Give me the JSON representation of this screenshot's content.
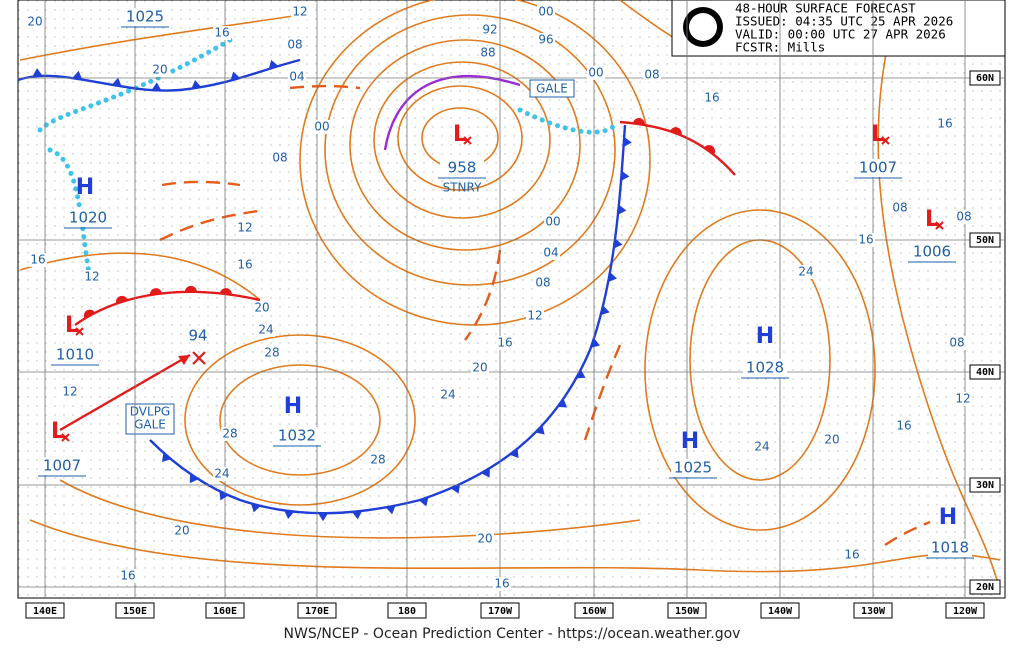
{
  "header": {
    "title": "48-HOUR SURFACE FORECAST",
    "issued": "ISSUED: 04:35 UTC 25 APR 2026",
    "valid": "VALID:  00:00 UTC 27 APR 2026",
    "forecaster": "FCSTR:  Mills"
  },
  "longitudes": [
    "140E",
    "150E",
    "160E",
    "170E",
    "180",
    "170W",
    "160W",
    "150W",
    "140W",
    "130W",
    "120W"
  ],
  "latitudes": [
    "60N",
    "50N",
    "40N",
    "30N",
    "20N"
  ],
  "centers": [
    {
      "pressure": 1025
    },
    {
      "symbol": "H",
      "pressure": 1020
    },
    {
      "symbol": "L",
      "pressure": 1010
    },
    {
      "symbol": "L",
      "pressure": 1007
    },
    {
      "symbol": "H",
      "pressure": 1032
    },
    {
      "symbol": "L",
      "pressure": 958
    },
    {
      "symbol": "H",
      "pressure": 1028
    },
    {
      "symbol": "H",
      "pressure": 1025
    },
    {
      "symbol": "L",
      "pressure": 1007
    },
    {
      "symbol": "L",
      "pressure": 1006
    },
    {
      "symbol": "H",
      "pressure": 1018
    }
  ],
  "annotations": [
    "GALE",
    "DVLPG",
    "GALE",
    "STNRY",
    "94"
  ],
  "isobar_labels": [
    "20",
    "12",
    "08",
    "04",
    "00",
    "08",
    "16",
    "20",
    "12",
    "16",
    "16",
    "12",
    "20",
    "24",
    "28",
    "12",
    "28",
    "24",
    "28",
    "24",
    "20",
    "16",
    "12",
    "08",
    "04",
    "00",
    "92",
    "88",
    "00",
    "96",
    "00",
    "08",
    "16",
    "16",
    "24",
    "24",
    "20",
    "16",
    "16",
    "20",
    "16",
    "16",
    "20",
    "08",
    "08",
    "08",
    "12",
    "16"
  ],
  "footer": "NWS/NCEP - Ocean Prediction Center - https://ocean.weather.gov"
}
